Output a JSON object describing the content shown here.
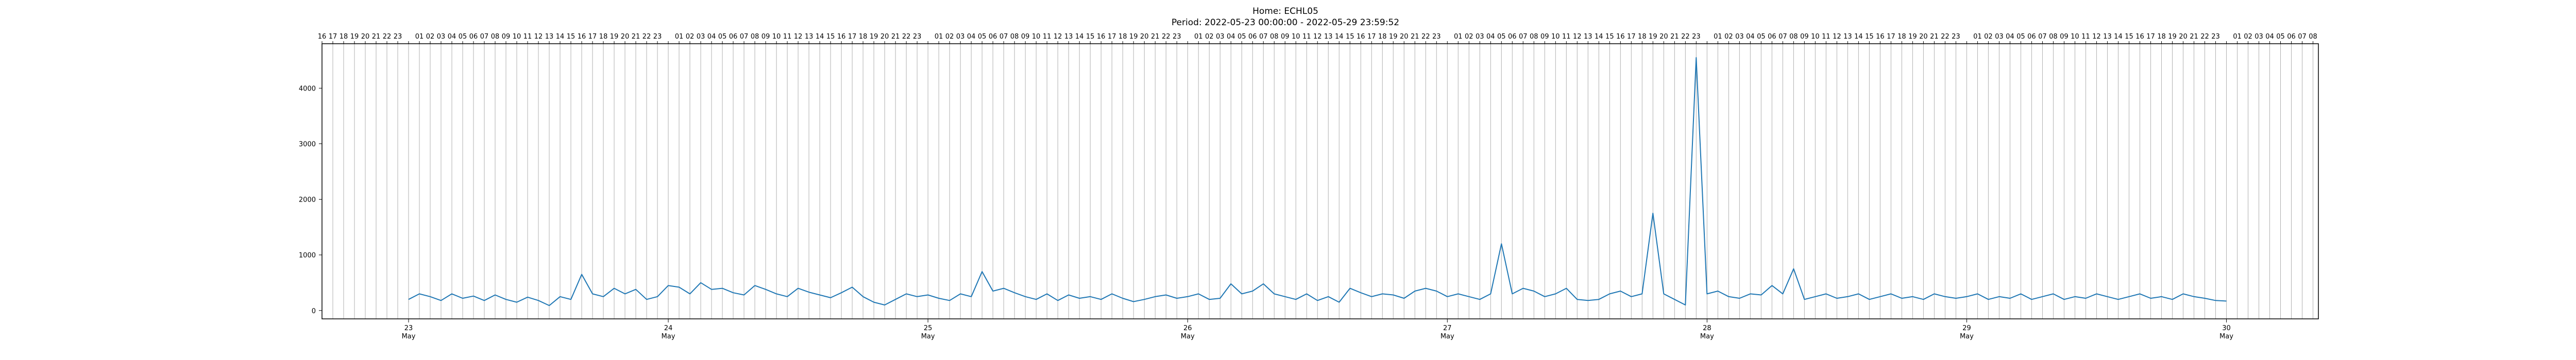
{
  "chart_data": {
    "type": "line",
    "title": "Home: ECHL05",
    "subtitle": "Period: 2022-05-23 00:00:00 - 2022-05-29 23:59:52",
    "xlabel": "",
    "ylabel": "",
    "x_range": [
      "2022-05-22T16:00",
      "2022-05-30T08:30"
    ],
    "ylim": [
      -150,
      4800
    ],
    "yticks": [
      0,
      1000,
      2000,
      3000,
      4000
    ],
    "x_major_ticks": [
      {
        "day": "23",
        "month": "May",
        "date": "2022-05-23"
      },
      {
        "day": "24",
        "month": "May",
        "date": "2022-05-24"
      },
      {
        "day": "25",
        "month": "May",
        "date": "2022-05-25"
      },
      {
        "day": "26",
        "month": "May",
        "date": "2022-05-26"
      },
      {
        "day": "27",
        "month": "May",
        "date": "2022-05-27"
      },
      {
        "day": "28",
        "month": "May",
        "date": "2022-05-28"
      },
      {
        "day": "29",
        "month": "May",
        "date": "2022-05-29"
      },
      {
        "day": "30",
        "month": "May",
        "date": "2022-05-30"
      }
    ],
    "top_hour_ticks": "hourly labels 01–23 along top axis; 00 omitted",
    "grid": "vertical hourly lines",
    "line_color": "#1f77b4",
    "series": [
      {
        "x": [
          "2022-05-23T00:00",
          "2022-05-23T01:00",
          "2022-05-23T02:00",
          "2022-05-23T03:00",
          "2022-05-23T04:00",
          "2022-05-23T05:00",
          "2022-05-23T06:00",
          "2022-05-23T07:00",
          "2022-05-23T08:00",
          "2022-05-23T09:00",
          "2022-05-23T10:00",
          "2022-05-23T11:00",
          "2022-05-23T12:00",
          "2022-05-23T13:00",
          "2022-05-23T14:00",
          "2022-05-23T15:00",
          "2022-05-23T16:00",
          "2022-05-23T17:00",
          "2022-05-23T18:00",
          "2022-05-23T19:00",
          "2022-05-23T20:00",
          "2022-05-23T21:00",
          "2022-05-23T22:00",
          "2022-05-23T23:00",
          "2022-05-24T00:00",
          "2022-05-24T01:00",
          "2022-05-24T02:00",
          "2022-05-24T03:00",
          "2022-05-24T04:00",
          "2022-05-24T05:00",
          "2022-05-24T06:00",
          "2022-05-24T07:00",
          "2022-05-24T08:00",
          "2022-05-24T09:00",
          "2022-05-24T10:00",
          "2022-05-24T11:00",
          "2022-05-24T12:00",
          "2022-05-24T13:00",
          "2022-05-24T14:00",
          "2022-05-24T15:00",
          "2022-05-24T16:00",
          "2022-05-24T17:00",
          "2022-05-24T18:00",
          "2022-05-24T19:00",
          "2022-05-24T20:00",
          "2022-05-24T21:00",
          "2022-05-24T22:00",
          "2022-05-24T23:00",
          "2022-05-25T00:00",
          "2022-05-25T01:00",
          "2022-05-25T02:00",
          "2022-05-25T03:00",
          "2022-05-25T04:00",
          "2022-05-25T05:00",
          "2022-05-25T06:00",
          "2022-05-25T07:00",
          "2022-05-25T08:00",
          "2022-05-25T09:00",
          "2022-05-25T10:00",
          "2022-05-25T11:00",
          "2022-05-25T12:00",
          "2022-05-25T13:00",
          "2022-05-25T14:00",
          "2022-05-25T15:00",
          "2022-05-25T16:00",
          "2022-05-25T17:00",
          "2022-05-25T18:00",
          "2022-05-25T19:00",
          "2022-05-25T20:00",
          "2022-05-25T21:00",
          "2022-05-25T22:00",
          "2022-05-25T23:00",
          "2022-05-26T00:00",
          "2022-05-26T01:00",
          "2022-05-26T02:00",
          "2022-05-26T03:00",
          "2022-05-26T04:00",
          "2022-05-26T05:00",
          "2022-05-26T06:00",
          "2022-05-26T07:00",
          "2022-05-26T08:00",
          "2022-05-26T09:00",
          "2022-05-26T10:00",
          "2022-05-26T11:00",
          "2022-05-26T12:00",
          "2022-05-26T13:00",
          "2022-05-26T14:00",
          "2022-05-26T15:00",
          "2022-05-26T16:00",
          "2022-05-26T17:00",
          "2022-05-26T18:00",
          "2022-05-26T19:00",
          "2022-05-26T20:00",
          "2022-05-26T21:00",
          "2022-05-26T22:00",
          "2022-05-26T23:00",
          "2022-05-27T00:00",
          "2022-05-27T01:00",
          "2022-05-27T02:00",
          "2022-05-27T03:00",
          "2022-05-27T04:00",
          "2022-05-27T05:00",
          "2022-05-27T06:00",
          "2022-05-27T07:00",
          "2022-05-27T08:00",
          "2022-05-27T09:00",
          "2022-05-27T10:00",
          "2022-05-27T11:00",
          "2022-05-27T12:00",
          "2022-05-27T13:00",
          "2022-05-27T14:00",
          "2022-05-27T15:00",
          "2022-05-27T16:00",
          "2022-05-27T17:00",
          "2022-05-27T18:00",
          "2022-05-27T19:00",
          "2022-05-27T20:00",
          "2022-05-27T21:00",
          "2022-05-27T22:00",
          "2022-05-27T23:00",
          "2022-05-28T00:00",
          "2022-05-28T01:00",
          "2022-05-28T02:00",
          "2022-05-28T03:00",
          "2022-05-28T04:00",
          "2022-05-28T05:00",
          "2022-05-28T06:00",
          "2022-05-28T07:00",
          "2022-05-28T08:00",
          "2022-05-28T09:00",
          "2022-05-28T10:00",
          "2022-05-28T11:00",
          "2022-05-28T12:00",
          "2022-05-28T13:00",
          "2022-05-28T14:00",
          "2022-05-28T15:00",
          "2022-05-28T16:00",
          "2022-05-28T17:00",
          "2022-05-28T18:00",
          "2022-05-28T19:00",
          "2022-05-28T20:00",
          "2022-05-28T21:00",
          "2022-05-28T22:00",
          "2022-05-28T23:00",
          "2022-05-29T00:00",
          "2022-05-29T01:00",
          "2022-05-29T02:00",
          "2022-05-29T03:00",
          "2022-05-29T04:00",
          "2022-05-29T05:00",
          "2022-05-29T06:00",
          "2022-05-29T07:00",
          "2022-05-29T08:00",
          "2022-05-29T09:00",
          "2022-05-29T10:00",
          "2022-05-29T11:00",
          "2022-05-29T12:00",
          "2022-05-29T13:00",
          "2022-05-29T14:00",
          "2022-05-29T15:00",
          "2022-05-29T16:00",
          "2022-05-29T17:00",
          "2022-05-29T18:00",
          "2022-05-29T19:00",
          "2022-05-29T20:00",
          "2022-05-29T21:00",
          "2022-05-29T22:00",
          "2022-05-29T23:00",
          "2022-05-30T00:00"
        ],
        "values": [
          200,
          300,
          250,
          180,
          300,
          220,
          260,
          180,
          280,
          200,
          150,
          240,
          180,
          90,
          250,
          200,
          650,
          300,
          250,
          400,
          300,
          380,
          200,
          250,
          450,
          420,
          300,
          500,
          380,
          400,
          320,
          280,
          450,
          380,
          300,
          250,
          400,
          330,
          280,
          230,
          320,
          420,
          250,
          150,
          100,
          200,
          300,
          250,
          280,
          220,
          180,
          300,
          250,
          700,
          350,
          400,
          320,
          250,
          200,
          300,
          180,
          280,
          220,
          250,
          200,
          300,
          220,
          160,
          200,
          250,
          280,
          220,
          250,
          300,
          200,
          220,
          480,
          300,
          350,
          480,
          300,
          250,
          200,
          300,
          180,
          250,
          150,
          400,
          320,
          250,
          300,
          280,
          220,
          350,
          400,
          350,
          250,
          300,
          250,
          200,
          300,
          1200,
          300,
          400,
          350,
          250,
          300,
          400,
          200,
          180,
          200,
          300,
          350,
          250,
          300,
          1750,
          300,
          200,
          100,
          4550,
          300,
          350,
          250,
          220,
          300,
          280,
          450,
          300,
          750,
          200,
          250,
          300,
          220,
          250,
          300,
          200,
          250,
          300,
          220,
          250,
          200,
          300,
          250,
          220,
          250,
          300,
          200,
          250,
          220,
          300,
          200,
          250,
          300,
          200,
          250,
          220,
          300,
          250,
          200,
          250,
          300,
          220,
          250,
          200,
          300,
          250,
          220,
          180,
          170
        ]
      }
    ]
  }
}
